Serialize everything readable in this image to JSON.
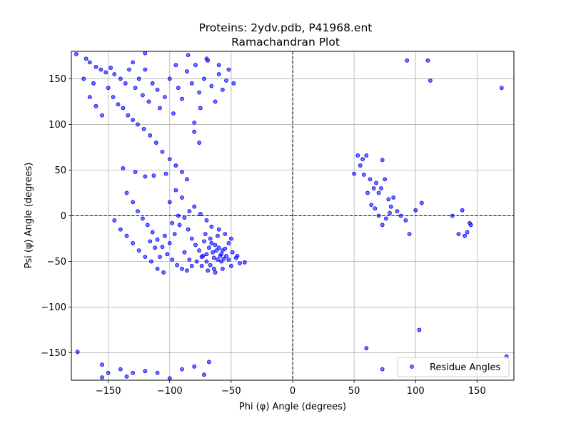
{
  "chart_data": {
    "type": "scatter",
    "title_line1": "Proteins: 2ydv.pdb, P41968.ent",
    "title_line2": "Ramachandran Plot",
    "xlabel": "Phi (φ) Angle (degrees)",
    "ylabel": "Psi (ψ) Angle (degrees)",
    "xlim": [
      -180,
      180
    ],
    "ylim": [
      -180,
      180
    ],
    "x_ticks": [
      -150,
      -100,
      -50,
      0,
      50,
      100,
      150
    ],
    "y_ticks": [
      -150,
      -100,
      -50,
      0,
      50,
      100,
      150
    ],
    "x_tick_labels": [
      "−150",
      "−100",
      "−50",
      "0",
      "50",
      "100",
      "150"
    ],
    "y_tick_labels": [
      "−150",
      "−100",
      "−50",
      "0",
      "50",
      "100",
      "150"
    ],
    "grid": true,
    "reference_lines": {
      "x": 0,
      "y": 0,
      "style": "dashed"
    },
    "legend_position": "lower-right",
    "series": [
      {
        "name": "Residue Angles",
        "color": "#0000ff",
        "points": [
          [
            -176,
            177
          ],
          [
            -170,
            150
          ],
          [
            -165,
            168
          ],
          [
            -160,
            163
          ],
          [
            -156,
            160
          ],
          [
            -152,
            157
          ],
          [
            -148,
            162
          ],
          [
            -145,
            155
          ],
          [
            -140,
            150
          ],
          [
            -136,
            145
          ],
          [
            -133,
            160
          ],
          [
            -130,
            168
          ],
          [
            -128,
            140
          ],
          [
            -125,
            150
          ],
          [
            -122,
            132
          ],
          [
            -120,
            160
          ],
          [
            -117,
            125
          ],
          [
            -114,
            145
          ],
          [
            -110,
            138
          ],
          [
            -108,
            118
          ],
          [
            -104,
            130
          ],
          [
            -100,
            150
          ],
          [
            -97,
            112
          ],
          [
            -93,
            140
          ],
          [
            -90,
            128
          ],
          [
            -86,
            158
          ],
          [
            -82,
            145
          ],
          [
            -79,
            165
          ],
          [
            -76,
            135
          ],
          [
            -72,
            150
          ],
          [
            -69,
            170
          ],
          [
            -66,
            142
          ],
          [
            -63,
            125
          ],
          [
            -60,
            155
          ],
          [
            -57,
            138
          ],
          [
            -54,
            148
          ],
          [
            -150,
            140
          ],
          [
            -146,
            130
          ],
          [
            -142,
            122
          ],
          [
            -138,
            118
          ],
          [
            -134,
            110
          ],
          [
            -130,
            105
          ],
          [
            -126,
            100
          ],
          [
            -121,
            95
          ],
          [
            -116,
            88
          ],
          [
            -111,
            80
          ],
          [
            -106,
            70
          ],
          [
            -100,
            62
          ],
          [
            -95,
            55
          ],
          [
            -90,
            48
          ],
          [
            -86,
            40
          ],
          [
            -80,
            92
          ],
          [
            -76,
            80
          ],
          [
            -120,
            43
          ],
          [
            -113,
            44
          ],
          [
            -103,
            46
          ],
          [
            -138,
            52
          ],
          [
            -128,
            48
          ],
          [
            -165,
            130
          ],
          [
            -160,
            120
          ],
          [
            -155,
            110
          ],
          [
            -162,
            145
          ],
          [
            -168,
            172
          ],
          [
            -120,
            178
          ],
          [
            -85,
            176
          ],
          [
            -70,
            172
          ],
          [
            -95,
            165
          ],
          [
            -60,
            165
          ],
          [
            -48,
            145
          ],
          [
            -52,
            160
          ],
          [
            -75,
            118
          ],
          [
            -80,
            102
          ],
          [
            -135,
            25
          ],
          [
            -130,
            15
          ],
          [
            -126,
            5
          ],
          [
            -122,
            -3
          ],
          [
            -118,
            -10
          ],
          [
            -114,
            -18
          ],
          [
            -110,
            -26
          ],
          [
            -106,
            -34
          ],
          [
            -102,
            -42
          ],
          [
            -98,
            -48
          ],
          [
            -94,
            -54
          ],
          [
            -90,
            -58
          ],
          [
            -86,
            -60
          ],
          [
            -82,
            -55
          ],
          [
            -78,
            -50
          ],
          [
            -74,
            -45
          ],
          [
            -145,
            -5
          ],
          [
            -140,
            -15
          ],
          [
            -135,
            -22
          ],
          [
            -130,
            -30
          ],
          [
            -125,
            -38
          ],
          [
            -120,
            -45
          ],
          [
            -115,
            -50
          ],
          [
            -110,
            -58
          ],
          [
            -105,
            -62
          ],
          [
            -100,
            -30
          ],
          [
            -96,
            -20
          ],
          [
            -92,
            -10
          ],
          [
            -88,
            -2
          ],
          [
            -84,
            5
          ],
          [
            -80,
            10
          ],
          [
            -75,
            2
          ],
          [
            -70,
            -5
          ],
          [
            -66,
            -12
          ],
          [
            -100,
            15
          ],
          [
            -95,
            28
          ],
          [
            -90,
            20
          ],
          [
            -85,
            -15
          ],
          [
            -82,
            -25
          ],
          [
            -79,
            -32
          ],
          [
            -76,
            -38
          ],
          [
            -73,
            -44
          ],
          [
            -70,
            -50
          ],
          [
            -67,
            -54
          ],
          [
            -64,
            -58
          ],
          [
            -61,
            -48
          ],
          [
            -58,
            -42
          ],
          [
            -55,
            -36
          ],
          [
            -52,
            -30
          ],
          [
            -49,
            -40
          ],
          [
            -46,
            -46
          ],
          [
            -43,
            -52
          ],
          [
            -39,
            -51
          ],
          [
            -68,
            -35
          ],
          [
            -65,
            -40
          ],
          [
            -62,
            -38
          ],
          [
            -59,
            -44
          ],
          [
            -56,
            -47
          ],
          [
            -60,
            -35
          ],
          [
            -66,
            -30
          ],
          [
            -72,
            -28
          ],
          [
            -63,
            -32
          ],
          [
            -57,
            -38
          ],
          [
            -54,
            -44
          ],
          [
            -70,
            -42
          ],
          [
            -64,
            -46
          ],
          [
            -58,
            -50
          ],
          [
            -52,
            -48
          ],
          [
            -67,
            -25
          ],
          [
            -61,
            -22
          ],
          [
            -55,
            -20
          ],
          [
            -50,
            -25
          ],
          [
            -69,
            -60
          ],
          [
            -63,
            -62
          ],
          [
            -57,
            -58
          ],
          [
            -74,
            -55
          ],
          [
            -50,
            -55
          ],
          [
            -45,
            -44
          ],
          [
            -71,
            -20
          ],
          [
            -60,
            -15
          ],
          [
            -108,
            -45
          ],
          [
            -104,
            -22
          ],
          [
            -112,
            -35
          ],
          [
            -116,
            -28
          ],
          [
            -98,
            -8
          ],
          [
            -93,
            0
          ],
          [
            -88,
            -40
          ],
          [
            -84,
            -48
          ],
          [
            -175,
            -149
          ],
          [
            -155,
            -163
          ],
          [
            -150,
            -172
          ],
          [
            -140,
            -168
          ],
          [
            -135,
            -176
          ],
          [
            -130,
            -172
          ],
          [
            -120,
            -170
          ],
          [
            -110,
            -172
          ],
          [
            -100,
            -178
          ],
          [
            -90,
            -168
          ],
          [
            -80,
            -165
          ],
          [
            -72,
            -174
          ],
          [
            -68,
            -160
          ],
          [
            -155,
            -177
          ],
          [
            50,
            46
          ],
          [
            53,
            66
          ],
          [
            57,
            62
          ],
          [
            60,
            66
          ],
          [
            63,
            40
          ],
          [
            66,
            30
          ],
          [
            68,
            36
          ],
          [
            70,
            25
          ],
          [
            72,
            30
          ],
          [
            75,
            40
          ],
          [
            78,
            18
          ],
          [
            80,
            10
          ],
          [
            82,
            20
          ],
          [
            85,
            5
          ],
          [
            88,
            0
          ],
          [
            92,
            -5
          ],
          [
            55,
            55
          ],
          [
            58,
            45
          ],
          [
            61,
            25
          ],
          [
            64,
            12
          ],
          [
            67,
            8
          ],
          [
            70,
            0
          ],
          [
            73,
            -10
          ],
          [
            76,
            -3
          ],
          [
            79,
            3
          ],
          [
            73,
            61
          ],
          [
            95,
            -20
          ],
          [
            100,
            6
          ],
          [
            105,
            14
          ],
          [
            130,
            0
          ],
          [
            135,
            -20
          ],
          [
            138,
            6
          ],
          [
            140,
            -22
          ],
          [
            142,
            -18
          ],
          [
            144,
            -8
          ],
          [
            145,
            -10
          ],
          [
            60,
            -145
          ],
          [
            73,
            -168
          ],
          [
            103,
            -125
          ],
          [
            93,
            170
          ],
          [
            110,
            170
          ],
          [
            112,
            148
          ],
          [
            170,
            140
          ],
          [
            174,
            -154
          ],
          [
            133,
            -167
          ]
        ]
      }
    ]
  }
}
